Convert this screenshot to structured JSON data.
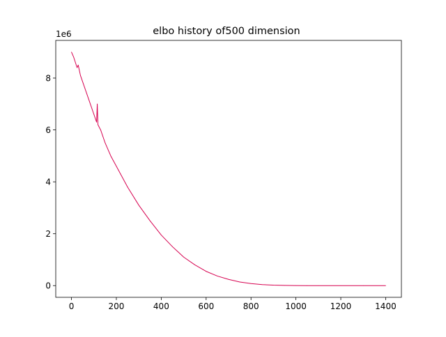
{
  "chart_data": {
    "type": "line",
    "title": "elbo history of500 dimension",
    "xlabel": "",
    "ylabel": "",
    "y_offset_label": "1e6",
    "xlim": [
      -70,
      1470
    ],
    "ylim": [
      -0.45,
      9.45
    ],
    "x_ticks": [
      0,
      200,
      400,
      600,
      800,
      1000,
      1200,
      1400
    ],
    "x_tick_labels": [
      "0",
      "200",
      "400",
      "600",
      "800",
      "1000",
      "1200",
      "1400"
    ],
    "y_ticks": [
      0,
      2,
      4,
      6,
      8
    ],
    "y_tick_labels": [
      "0",
      "2",
      "4",
      "6",
      "8"
    ],
    "grid": false,
    "series": [
      {
        "color": "#d6004f",
        "x": [
          0,
          10,
          25,
          30,
          40,
          60,
          80,
          100,
          112,
          115,
          118,
          130,
          150,
          175,
          200,
          250,
          300,
          350,
          400,
          450,
          500,
          550,
          600,
          650,
          700,
          750,
          800,
          850,
          900,
          950,
          1000,
          1050,
          1100,
          1200,
          1300,
          1400
        ],
        "y": [
          9.0,
          8.8,
          8.4,
          8.5,
          8.1,
          7.6,
          7.1,
          6.6,
          6.3,
          7.0,
          6.2,
          6.0,
          5.5,
          5.0,
          4.6,
          3.8,
          3.1,
          2.5,
          1.95,
          1.5,
          1.1,
          0.8,
          0.55,
          0.37,
          0.24,
          0.14,
          0.08,
          0.04,
          0.02,
          0.01,
          0.003,
          0.001,
          0.0,
          0.0,
          0.0,
          0.0
        ]
      }
    ]
  }
}
